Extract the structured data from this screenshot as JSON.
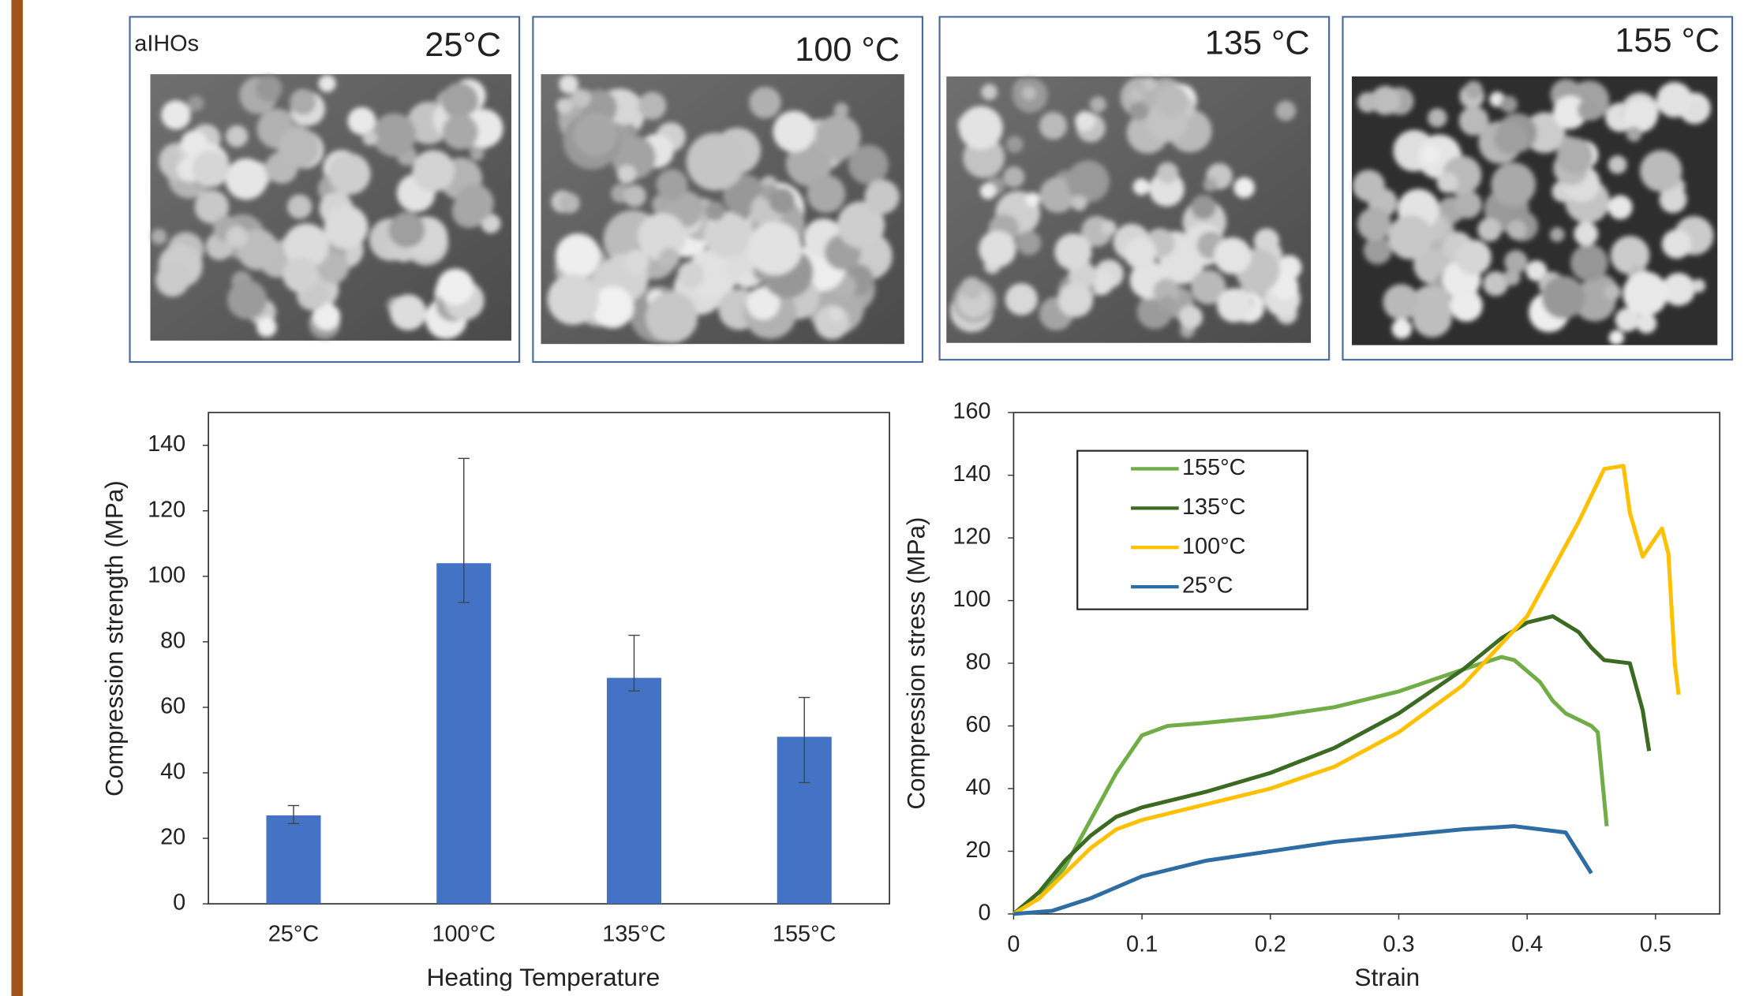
{
  "panels": [
    {
      "sample": "aIHOs",
      "label": "25°C"
    },
    {
      "label": "100 °C"
    },
    {
      "label": "135 °C"
    },
    {
      "label": "155 °C"
    }
  ],
  "chart_data": [
    {
      "type": "bar",
      "ylabel": "Compression strength (MPa)",
      "xlabel": "Heating Temperature",
      "categories": [
        "25°C",
        "100°C",
        "135°C",
        "155°C"
      ],
      "values": [
        27,
        104,
        69,
        51
      ],
      "err_plus": [
        3,
        32,
        13,
        12
      ],
      "err_minus": [
        2.5,
        12,
        4,
        14
      ],
      "color": "#4472c4",
      "ylim": [
        0,
        150
      ],
      "yticks": [
        0,
        20,
        40,
        60,
        80,
        100,
        120,
        140
      ]
    },
    {
      "type": "line",
      "ylabel": "Compression stress (MPa)",
      "xlabel": "Strain",
      "xlim": [
        0,
        0.55
      ],
      "xticks": [
        0,
        0.1,
        0.2,
        0.3,
        0.4,
        0.5
      ],
      "ylim": [
        0,
        160
      ],
      "yticks": [
        0,
        20,
        40,
        60,
        80,
        100,
        120,
        140,
        160
      ],
      "legend": "upper left",
      "series": [
        {
          "name": "155°C",
          "color": "#70ad47",
          "x": [
            0,
            0.02,
            0.04,
            0.06,
            0.08,
            0.1,
            0.12,
            0.15,
            0.2,
            0.25,
            0.3,
            0.35,
            0.38,
            0.39,
            0.41,
            0.42,
            0.43,
            0.45,
            0.455,
            0.462
          ],
          "values": [
            0,
            5,
            15,
            30,
            45,
            57,
            60,
            61,
            63,
            66,
            71,
            78,
            82,
            81,
            74,
            68,
            64,
            60,
            58,
            28
          ]
        },
        {
          "name": "135°C",
          "color": "#3b6b23",
          "x": [
            0,
            0.02,
            0.04,
            0.06,
            0.08,
            0.1,
            0.15,
            0.2,
            0.25,
            0.3,
            0.35,
            0.38,
            0.4,
            0.42,
            0.44,
            0.45,
            0.46,
            0.48,
            0.49,
            0.495
          ],
          "values": [
            0,
            7,
            17,
            25,
            31,
            34,
            39,
            45,
            53,
            64,
            78,
            88,
            93,
            95,
            90,
            85,
            81,
            80,
            65,
            52
          ]
        },
        {
          "name": "100°C",
          "color": "#ffc000",
          "x": [
            0,
            0.02,
            0.04,
            0.06,
            0.08,
            0.1,
            0.15,
            0.2,
            0.25,
            0.3,
            0.35,
            0.4,
            0.44,
            0.46,
            0.475,
            0.48,
            0.49,
            0.5,
            0.505,
            0.51,
            0.515,
            0.518
          ],
          "values": [
            0,
            5,
            13,
            21,
            27,
            30,
            35,
            40,
            47,
            58,
            73,
            95,
            125,
            142,
            143,
            128,
            114,
            120,
            123,
            115,
            80,
            70
          ]
        },
        {
          "name": "25°C",
          "color": "#2e6da4",
          "x": [
            0,
            0.03,
            0.06,
            0.1,
            0.15,
            0.2,
            0.25,
            0.3,
            0.35,
            0.39,
            0.43,
            0.45
          ],
          "values": [
            0,
            1,
            5,
            12,
            17,
            20,
            23,
            25,
            27,
            28,
            26,
            13
          ]
        }
      ]
    }
  ]
}
